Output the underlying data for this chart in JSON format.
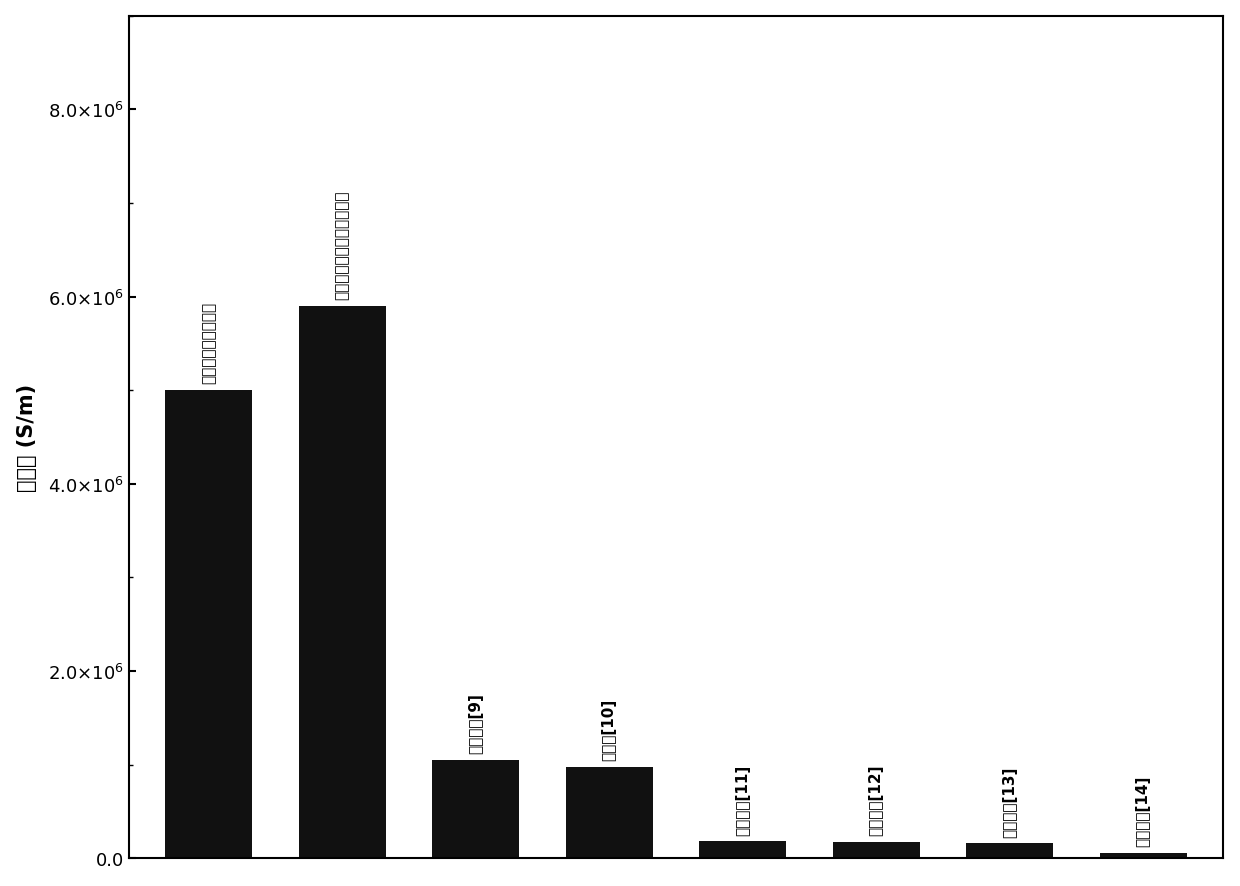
{
  "values": [
    5000000,
    5900000,
    1050000,
    980000,
    180000,
    175000,
    160000,
    60000
  ],
  "bar_labels": [
    "石墨烯膜（本发明）",
    "石墨烯金属合膤（本发明）",
    "石墨烯胶[9]",
    "石墨胶[10]",
    "石墨烯纸[11]",
    "石墨烯纸[12]",
    "石墨烯纸[13]",
    "石墨烯膜[14]"
  ],
  "ylabel": "电导率 (S/m)",
  "bar_color": "#111111",
  "background_color": "#ffffff",
  "ylim": [
    0,
    9000000
  ],
  "yticks": [
    0.0,
    2000000,
    4000000,
    6000000,
    8000000
  ],
  "figsize": [
    12.4,
    8.87
  ],
  "dpi": 100,
  "label_fontsize": 11,
  "ylabel_fontsize": 15,
  "ytick_fontsize": 13,
  "bar_width": 0.65
}
